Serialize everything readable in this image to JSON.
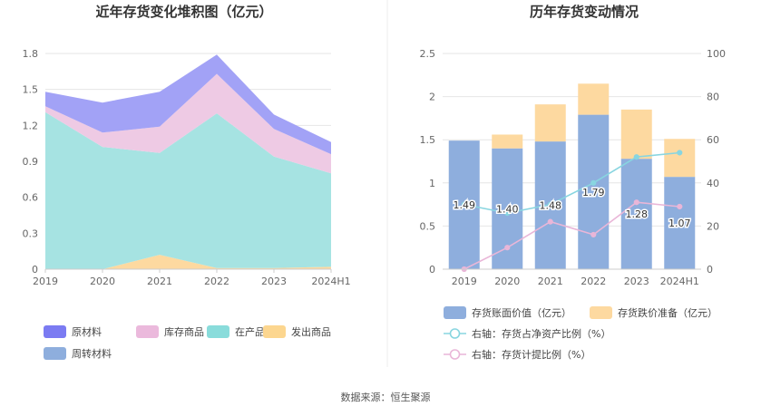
{
  "source": "数据来源：恒生聚源",
  "chart_data": [
    {
      "type": "area",
      "stacked": true,
      "title": "近年存货变化堆积图（亿元）",
      "categories": [
        "2019",
        "2020",
        "2021",
        "2022",
        "2023",
        "2024H1"
      ],
      "ylim": [
        0,
        1.8
      ],
      "yticks": [
        "0",
        "0.3",
        "0.6",
        "0.9",
        "1.2",
        "1.5",
        "1.8"
      ],
      "grid": true,
      "legend_position": "bottom",
      "series": [
        {
          "name": "发出商品",
          "color": "#fdd9a0",
          "values": [
            0.0,
            0.0,
            0.12,
            0.01,
            0.01,
            0.02
          ]
        },
        {
          "name": "在产品",
          "color": "#a6e3e2",
          "values": [
            1.31,
            1.02,
            0.85,
            1.29,
            0.93,
            0.78
          ]
        },
        {
          "name": "库存商品",
          "color": "#eecae4",
          "values": [
            0.05,
            0.12,
            0.22,
            0.33,
            0.23,
            0.16
          ]
        },
        {
          "name": "原材料",
          "color": "#a2a2f6",
          "values": [
            0.12,
            0.25,
            0.29,
            0.16,
            0.12,
            0.1
          ]
        },
        {
          "name": "周转材料",
          "color": "#8eaedd",
          "values": [
            0,
            0,
            0,
            0,
            0,
            0
          ]
        }
      ],
      "legend_order": [
        "原材料",
        "库存商品",
        "在产品",
        "发出商品",
        "周转材料"
      ],
      "legend_colors": {
        "原材料": "#7b7bf2",
        "库存商品": "#ebb9dc",
        "在产品": "#89dcdb",
        "发出商品": "#fcd68f",
        "周转材料": "#8eaedd"
      }
    },
    {
      "type": "bar",
      "stacked": true,
      "title": "历年存货变动情况",
      "categories": [
        "2019",
        "2020",
        "2021",
        "2022",
        "2023",
        "2024H1"
      ],
      "ylim": [
        0,
        2.5
      ],
      "yticks": [
        "0",
        "0.5",
        "1",
        "1.5",
        "2",
        "2.5"
      ],
      "y2lim": [
        0,
        100
      ],
      "y2ticks": [
        "0",
        "20",
        "40",
        "60",
        "80",
        "100"
      ],
      "grid": true,
      "legend_position": "bottom",
      "series": [
        {
          "name": "存货账面价值（亿元）",
          "kind": "bar",
          "color": "#8eaedd",
          "values": [
            1.49,
            1.4,
            1.48,
            1.79,
            1.28,
            1.07
          ],
          "labels": [
            "1.49",
            "1.40",
            "1.48",
            "1.79",
            "1.28",
            "1.07"
          ]
        },
        {
          "name": "存货跌价准备（亿元）",
          "kind": "bar",
          "color": "#fdd9a0",
          "values": [
            0.0,
            0.16,
            0.43,
            0.36,
            0.57,
            0.44
          ]
        },
        {
          "name": "右轴：存货占净资产比例（%）",
          "kind": "line",
          "axis": "right",
          "color": "#88d5e0",
          "values": [
            30,
            26,
            30,
            40,
            52,
            54
          ]
        },
        {
          "name": "右轴：存货计提比例（%）",
          "kind": "line",
          "axis": "right",
          "color": "#e9b6d8",
          "values": [
            0,
            10,
            22,
            16,
            31,
            29
          ]
        }
      ]
    }
  ]
}
